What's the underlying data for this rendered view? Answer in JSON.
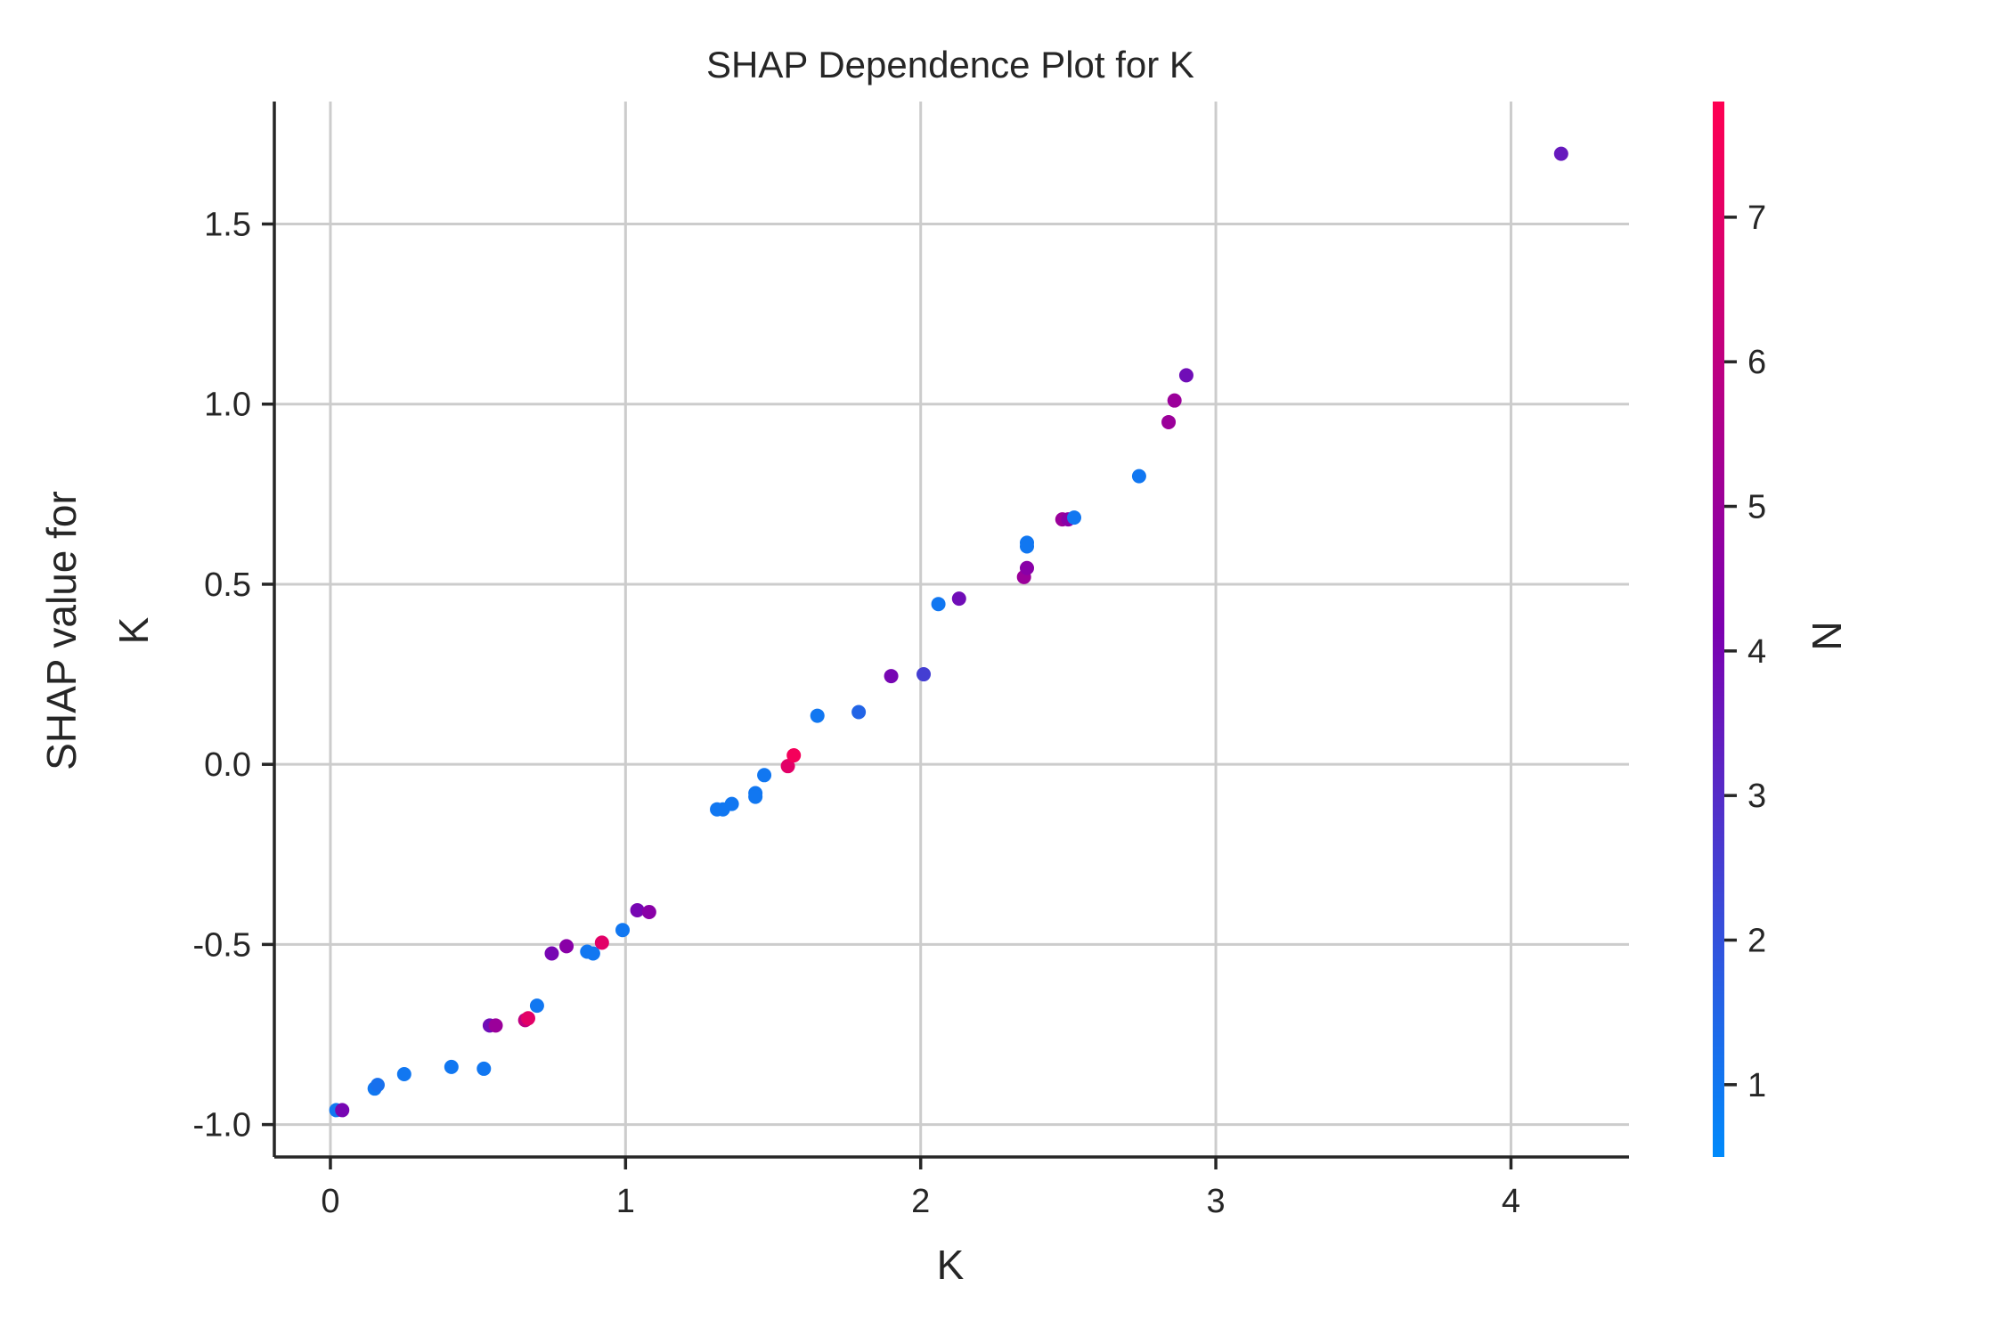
{
  "chart_data": {
    "type": "scatter",
    "title": "SHAP Dependence Plot for K",
    "xlabel": "K",
    "ylabel_lines": [
      "SHAP value for",
      "K"
    ],
    "xlim": [
      -0.19,
      4.4
    ],
    "ylim": [
      -1.09,
      1.84
    ],
    "xticks": [
      0,
      1,
      2,
      3,
      4
    ],
    "xtick_labels": [
      "0",
      "1",
      "2",
      "3",
      "4"
    ],
    "yticks": [
      -1.0,
      -0.5,
      0.0,
      0.5,
      1.0,
      1.5
    ],
    "ytick_labels": [
      "-1.0",
      "-0.5",
      "0.0",
      "0.5",
      "1.0",
      "1.5"
    ],
    "grid": true,
    "colorbar": {
      "label": "N",
      "range": [
        0.5,
        7.8
      ],
      "ticks": [
        1,
        2,
        3,
        4,
        5,
        6,
        7
      ],
      "tick_labels": [
        "1",
        "2",
        "3",
        "4",
        "5",
        "6",
        "7"
      ],
      "color_low": "#008afb",
      "color_mid": "#7c00b0",
      "color_high": "#ff0052"
    },
    "points": [
      {
        "x": 0.02,
        "y": -0.96,
        "n": 1.0
      },
      {
        "x": 0.04,
        "y": -0.96,
        "n": 4.0
      },
      {
        "x": 0.15,
        "y": -0.9,
        "n": 1.0
      },
      {
        "x": 0.16,
        "y": -0.89,
        "n": 1.2
      },
      {
        "x": 0.25,
        "y": -0.86,
        "n": 1.0
      },
      {
        "x": 0.41,
        "y": -0.84,
        "n": 1.0
      },
      {
        "x": 0.52,
        "y": -0.845,
        "n": 1.0
      },
      {
        "x": 0.54,
        "y": -0.725,
        "n": 3.8
      },
      {
        "x": 0.56,
        "y": -0.725,
        "n": 5.0
      },
      {
        "x": 0.66,
        "y": -0.71,
        "n": 6.0
      },
      {
        "x": 0.67,
        "y": -0.705,
        "n": 7.0
      },
      {
        "x": 0.7,
        "y": -0.67,
        "n": 1.0
      },
      {
        "x": 0.75,
        "y": -0.525,
        "n": 4.0
      },
      {
        "x": 0.8,
        "y": -0.505,
        "n": 4.5
      },
      {
        "x": 0.87,
        "y": -0.52,
        "n": 1.0
      },
      {
        "x": 0.89,
        "y": -0.525,
        "n": 1.0
      },
      {
        "x": 0.92,
        "y": -0.495,
        "n": 7.0
      },
      {
        "x": 0.99,
        "y": -0.46,
        "n": 1.0
      },
      {
        "x": 1.04,
        "y": -0.405,
        "n": 4.0
      },
      {
        "x": 1.08,
        "y": -0.41,
        "n": 4.5
      },
      {
        "x": 1.31,
        "y": -0.125,
        "n": 1.0
      },
      {
        "x": 1.33,
        "y": -0.125,
        "n": 1.0
      },
      {
        "x": 1.36,
        "y": -0.11,
        "n": 1.0
      },
      {
        "x": 1.44,
        "y": -0.08,
        "n": 1.0
      },
      {
        "x": 1.44,
        "y": -0.09,
        "n": 1.0
      },
      {
        "x": 1.47,
        "y": -0.03,
        "n": 1.0
      },
      {
        "x": 1.55,
        "y": -0.005,
        "n": 7.0
      },
      {
        "x": 1.57,
        "y": 0.025,
        "n": 7.5
      },
      {
        "x": 1.65,
        "y": 0.135,
        "n": 1.0
      },
      {
        "x": 1.79,
        "y": 0.145,
        "n": 1.5
      },
      {
        "x": 1.9,
        "y": 0.245,
        "n": 4.0
      },
      {
        "x": 2.01,
        "y": 0.25,
        "n": 2.5
      },
      {
        "x": 2.06,
        "y": 0.445,
        "n": 1.0
      },
      {
        "x": 2.13,
        "y": 0.46,
        "n": 3.8
      },
      {
        "x": 2.35,
        "y": 0.52,
        "n": 5.0
      },
      {
        "x": 2.36,
        "y": 0.545,
        "n": 4.5
      },
      {
        "x": 2.36,
        "y": 0.605,
        "n": 1.0
      },
      {
        "x": 2.36,
        "y": 0.615,
        "n": 1.0
      },
      {
        "x": 2.48,
        "y": 0.68,
        "n": 5.0
      },
      {
        "x": 2.5,
        "y": 0.68,
        "n": 4.5
      },
      {
        "x": 2.52,
        "y": 0.685,
        "n": 1.0
      },
      {
        "x": 2.74,
        "y": 0.8,
        "n": 1.0
      },
      {
        "x": 2.84,
        "y": 0.95,
        "n": 5.0
      },
      {
        "x": 2.86,
        "y": 1.01,
        "n": 5.0
      },
      {
        "x": 2.9,
        "y": 1.08,
        "n": 3.8
      },
      {
        "x": 4.17,
        "y": 1.695,
        "n": 3.5
      }
    ]
  }
}
